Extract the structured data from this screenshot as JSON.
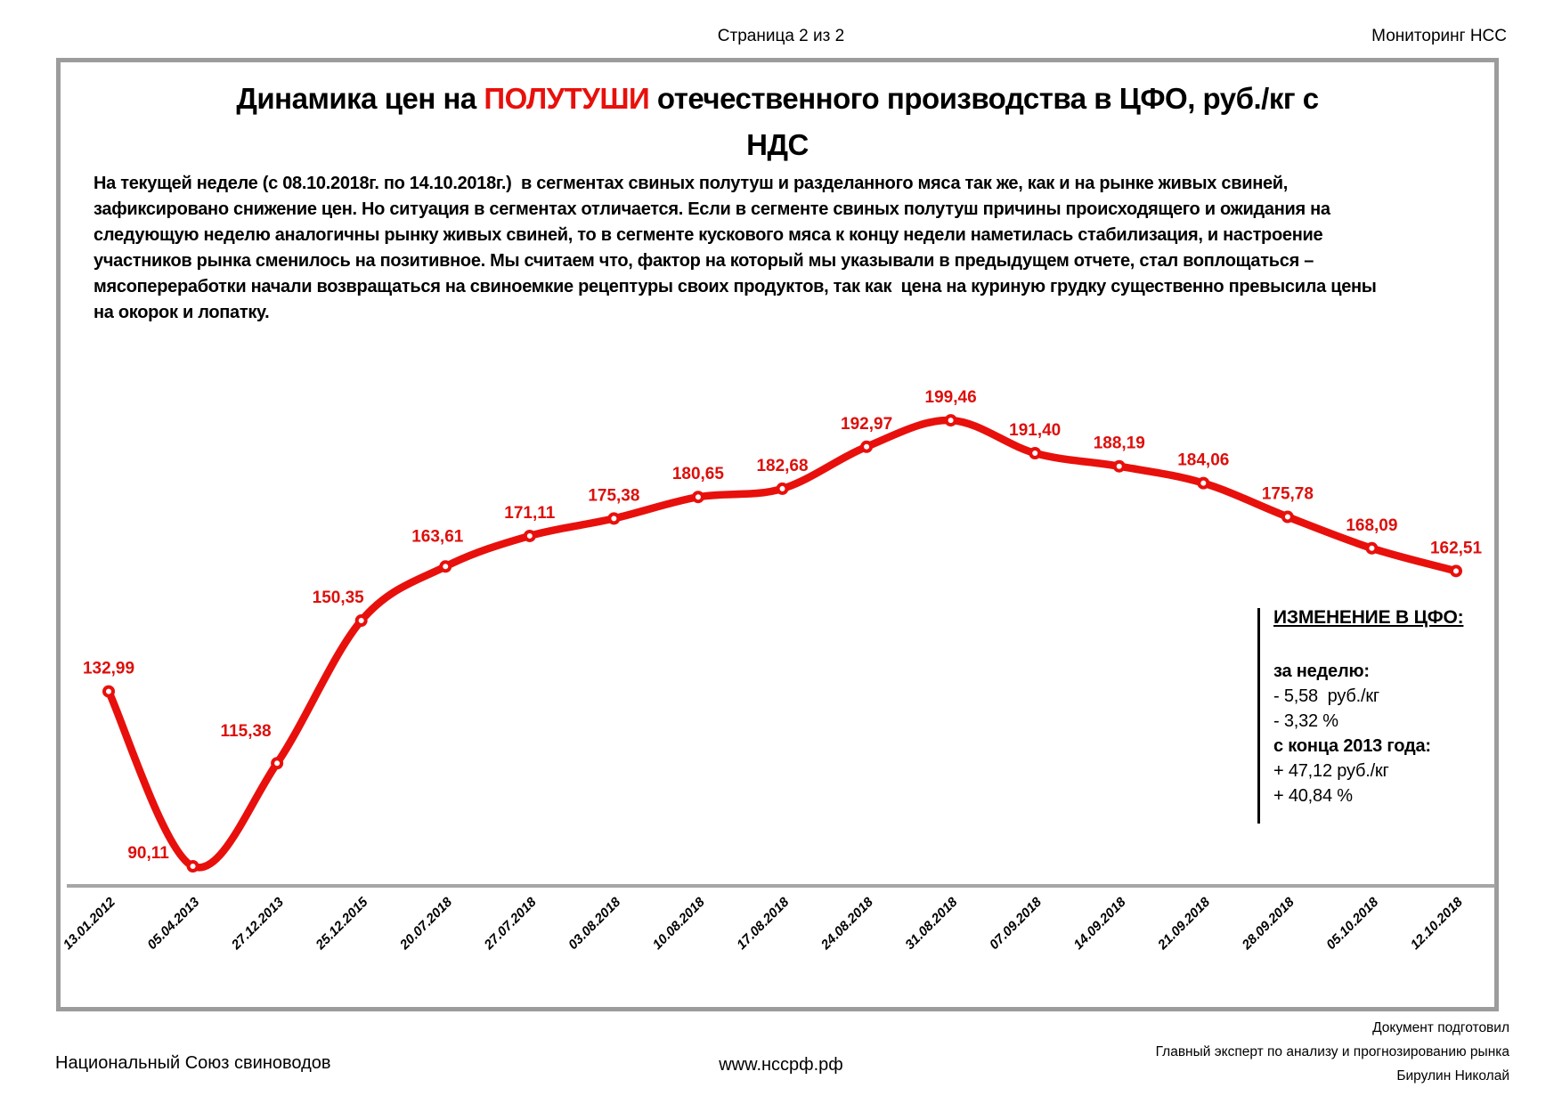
{
  "header": {
    "page_info": "Страница 2 из 2",
    "brand": "Мониторинг НСС"
  },
  "title": {
    "prefix": "Динамика цен на ",
    "highlight": "ПОЛУТУШИ",
    "suffix": " отечественного производства в ЦФО, руб./кг с",
    "line2": "НДС"
  },
  "summary": {
    "lines": [
      "На текущей неделе (с 08.10.2018г. по 14.10.2018г.)  в сегментах свиных полутуш и разделанного мяса так же, как и на рынке живых свиней,",
      "зафиксировано снижение цен. Но ситуация в сегментах отличается. Если в сегменте свиных полутуш причины происходящего и ожидания на",
      "следующую неделю аналогичны рынку живых свиней, то в сегменте кускового мяса к концу недели наметилась стабилизация, и настроение",
      "участников рынка сменилось на позитивное. Мы считаем что, фактор на который мы указывали в предыдущем отчете, стал воплощаться –",
      "мясопереработки начали возвращаться на свиноемкие рецептуры своих продуктов, так как  цена на куриную грудку существенно превысила цены",
      "на окорок и лопатку."
    ]
  },
  "chart_data": {
    "type": "line",
    "title": "Динамика цен на ПОЛУТУШИ отечественного производства в ЦФО, руб./кг с НДС",
    "categories": [
      "13.01.2012",
      "05.04.2013",
      "27.12.2013",
      "25.12.2015",
      "20.07.2018",
      "27.07.2018",
      "03.08.2018",
      "10.08.2018",
      "17.08.2018",
      "24.08.2018",
      "31.08.2018",
      "07.09.2018",
      "14.09.2018",
      "21.09.2018",
      "28.09.2018",
      "05.10.2018",
      "12.10.2018"
    ],
    "values": [
      132.99,
      90.11,
      115.38,
      150.35,
      163.61,
      171.11,
      175.38,
      180.65,
      182.68,
      192.97,
      199.46,
      191.4,
      188.19,
      184.06,
      175.78,
      168.09,
      162.51
    ],
    "xlabel": "",
    "ylabel": "",
    "ylim": [
      85,
      205
    ],
    "grid": false,
    "legend": false,
    "x_tick_rotation": 45,
    "decimal_separator": ",",
    "line_color": "#e8100c",
    "label_color": "#dd0f0b",
    "marker_fill": "#ffffff",
    "axis_color": "#a6a6a6"
  },
  "changes": {
    "title": "ИЗМЕНЕНИЕ В ЦФО:",
    "week_label": "за неделю:",
    "week_rub": "- 5,58  руб./кг",
    "week_pct": "- 3,32 %",
    "since_label": "с конца 2013 года:",
    "since_rub": "+ 47,12 руб./кг",
    "since_pct": "+ 40,84 %"
  },
  "footer": {
    "org": "Национальный Союз свиноводов",
    "site": "www.нссрф.рф",
    "prepared": [
      "Документ подготовил",
      "Главный эксперт по анализу и прогнозированию рынка",
      "Бирулин Николай"
    ]
  }
}
